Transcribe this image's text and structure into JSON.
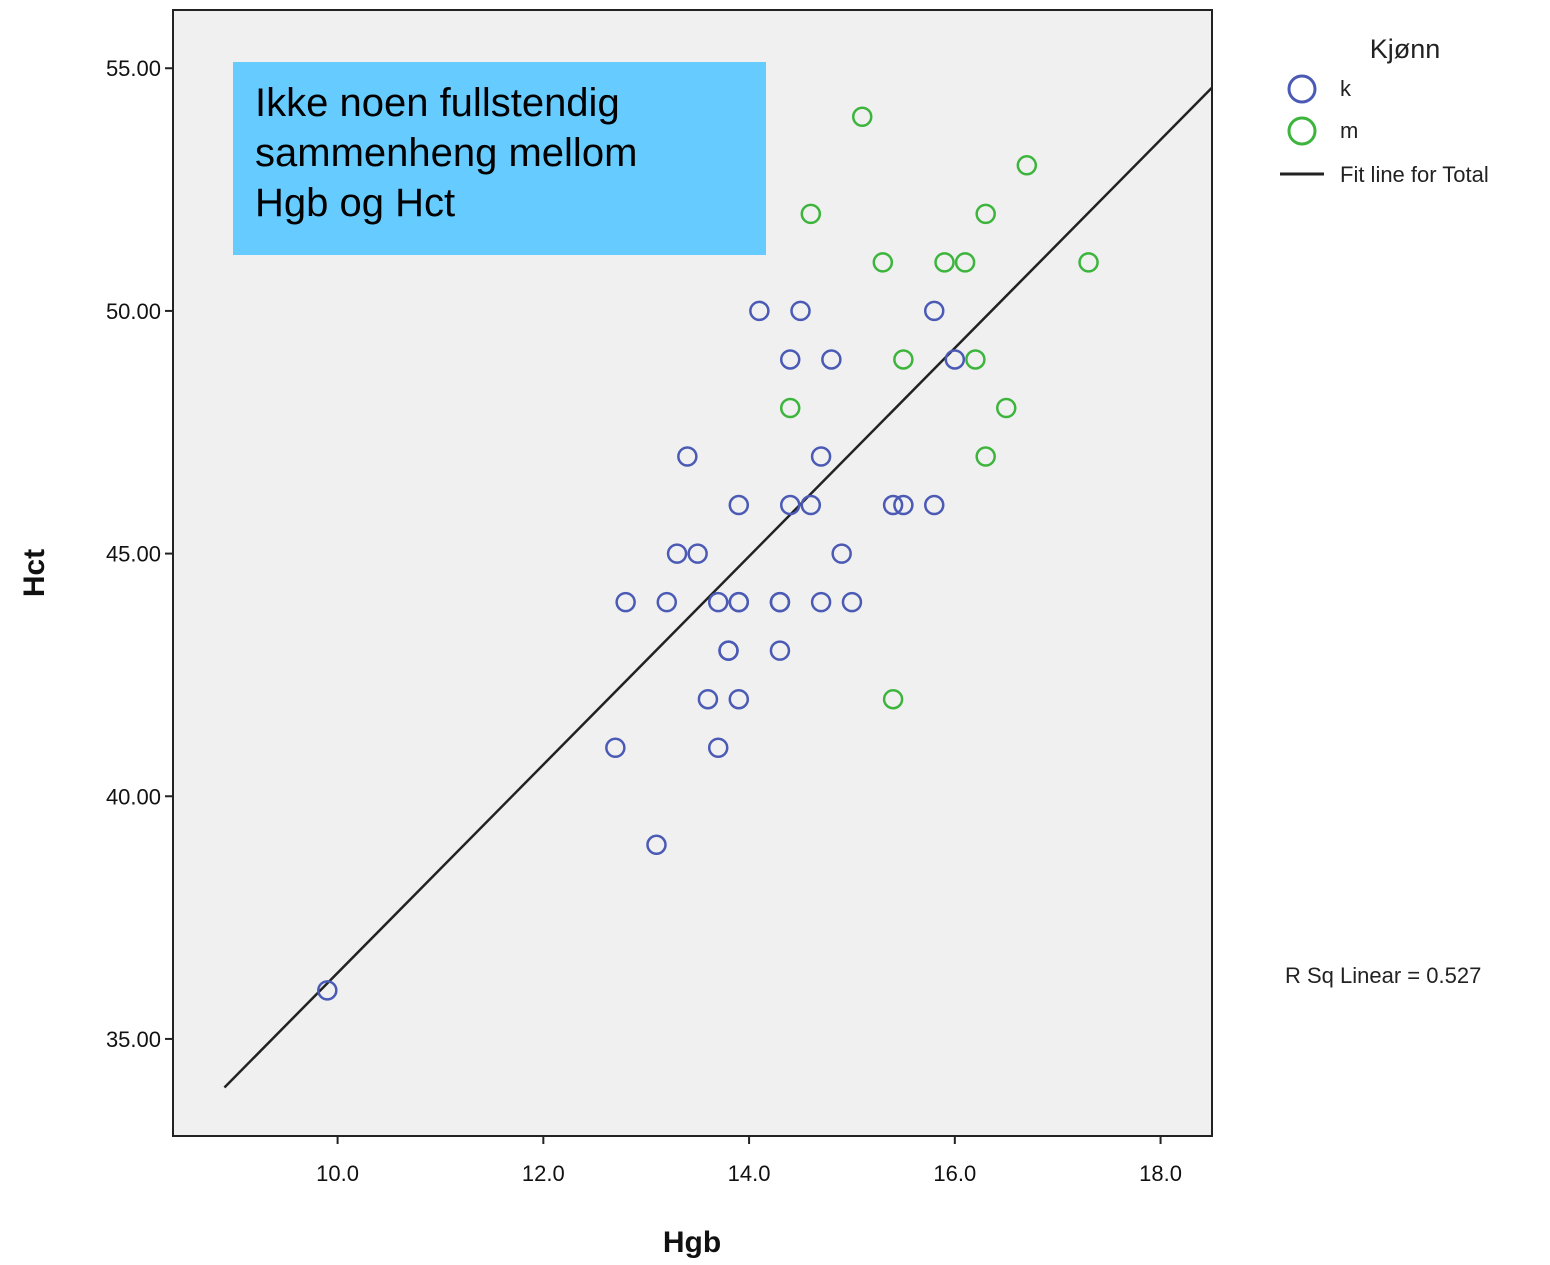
{
  "chart_data": {
    "type": "scatter",
    "xlabel": "Hgb",
    "ylabel": "Hct",
    "xlim": [
      8.4,
      18.5
    ],
    "ylim": [
      33.0,
      56.2
    ],
    "x_ticks": [
      10.0,
      12.0,
      14.0,
      16.0,
      18.0
    ],
    "x_tick_labels": [
      "10.0",
      "12.0",
      "14.0",
      "16.0",
      "18.0"
    ],
    "y_ticks": [
      35,
      40,
      45,
      50,
      55
    ],
    "y_tick_labels": [
      "35.00",
      "40.00",
      "45.00",
      "50.00",
      "55.00"
    ],
    "grid": false,
    "legend": {
      "title": "Kjønn",
      "placement": "top-right outside",
      "line_label": "Fit line for Total"
    },
    "series": [
      {
        "name": "k",
        "color": "#4a5ab5",
        "marker": "open-circle",
        "points": [
          [
            9.9,
            36
          ],
          [
            13.1,
            39
          ],
          [
            12.7,
            41
          ],
          [
            13.7,
            41
          ],
          [
            13.6,
            42
          ],
          [
            13.9,
            42
          ],
          [
            13.8,
            43
          ],
          [
            13.8,
            43
          ],
          [
            14.3,
            43
          ],
          [
            12.8,
            44
          ],
          [
            13.2,
            44
          ],
          [
            13.7,
            44
          ],
          [
            13.9,
            44
          ],
          [
            13.9,
            44
          ],
          [
            14.3,
            44
          ],
          [
            14.3,
            44
          ],
          [
            14.7,
            44
          ],
          [
            15.0,
            44
          ],
          [
            13.3,
            45
          ],
          [
            13.5,
            45
          ],
          [
            14.9,
            45
          ],
          [
            13.9,
            46
          ],
          [
            14.4,
            46
          ],
          [
            14.6,
            46
          ],
          [
            15.4,
            46
          ],
          [
            15.5,
            46
          ],
          [
            15.8,
            46
          ],
          [
            13.4,
            47
          ],
          [
            14.7,
            47
          ],
          [
            14.4,
            49
          ],
          [
            14.8,
            49
          ],
          [
            16.0,
            49
          ],
          [
            14.1,
            50
          ],
          [
            14.5,
            50
          ],
          [
            15.8,
            50
          ]
        ]
      },
      {
        "name": "m",
        "color": "#3db53d",
        "marker": "open-circle",
        "points": [
          [
            15.4,
            42
          ],
          [
            16.3,
            47
          ],
          [
            14.4,
            48
          ],
          [
            16.5,
            48
          ],
          [
            15.5,
            49
          ],
          [
            16.2,
            49
          ],
          [
            15.3,
            51
          ],
          [
            15.9,
            51
          ],
          [
            16.1,
            51
          ],
          [
            17.3,
            51
          ],
          [
            14.6,
            52
          ],
          [
            16.3,
            52
          ],
          [
            16.7,
            53
          ],
          [
            15.1,
            54
          ]
        ]
      }
    ],
    "fit_line": {
      "label": "Fit line for Total",
      "color": "#222222",
      "x": [
        8.9,
        18.5
      ],
      "y": [
        34.0,
        54.6
      ]
    },
    "r_squared_label": "R Sq Linear = 0.527",
    "annotation": {
      "lines": [
        "Ikke noen fullstendig",
        "sammenheng mellom",
        "Hgb og Hct"
      ],
      "background": "#66ccff"
    }
  }
}
